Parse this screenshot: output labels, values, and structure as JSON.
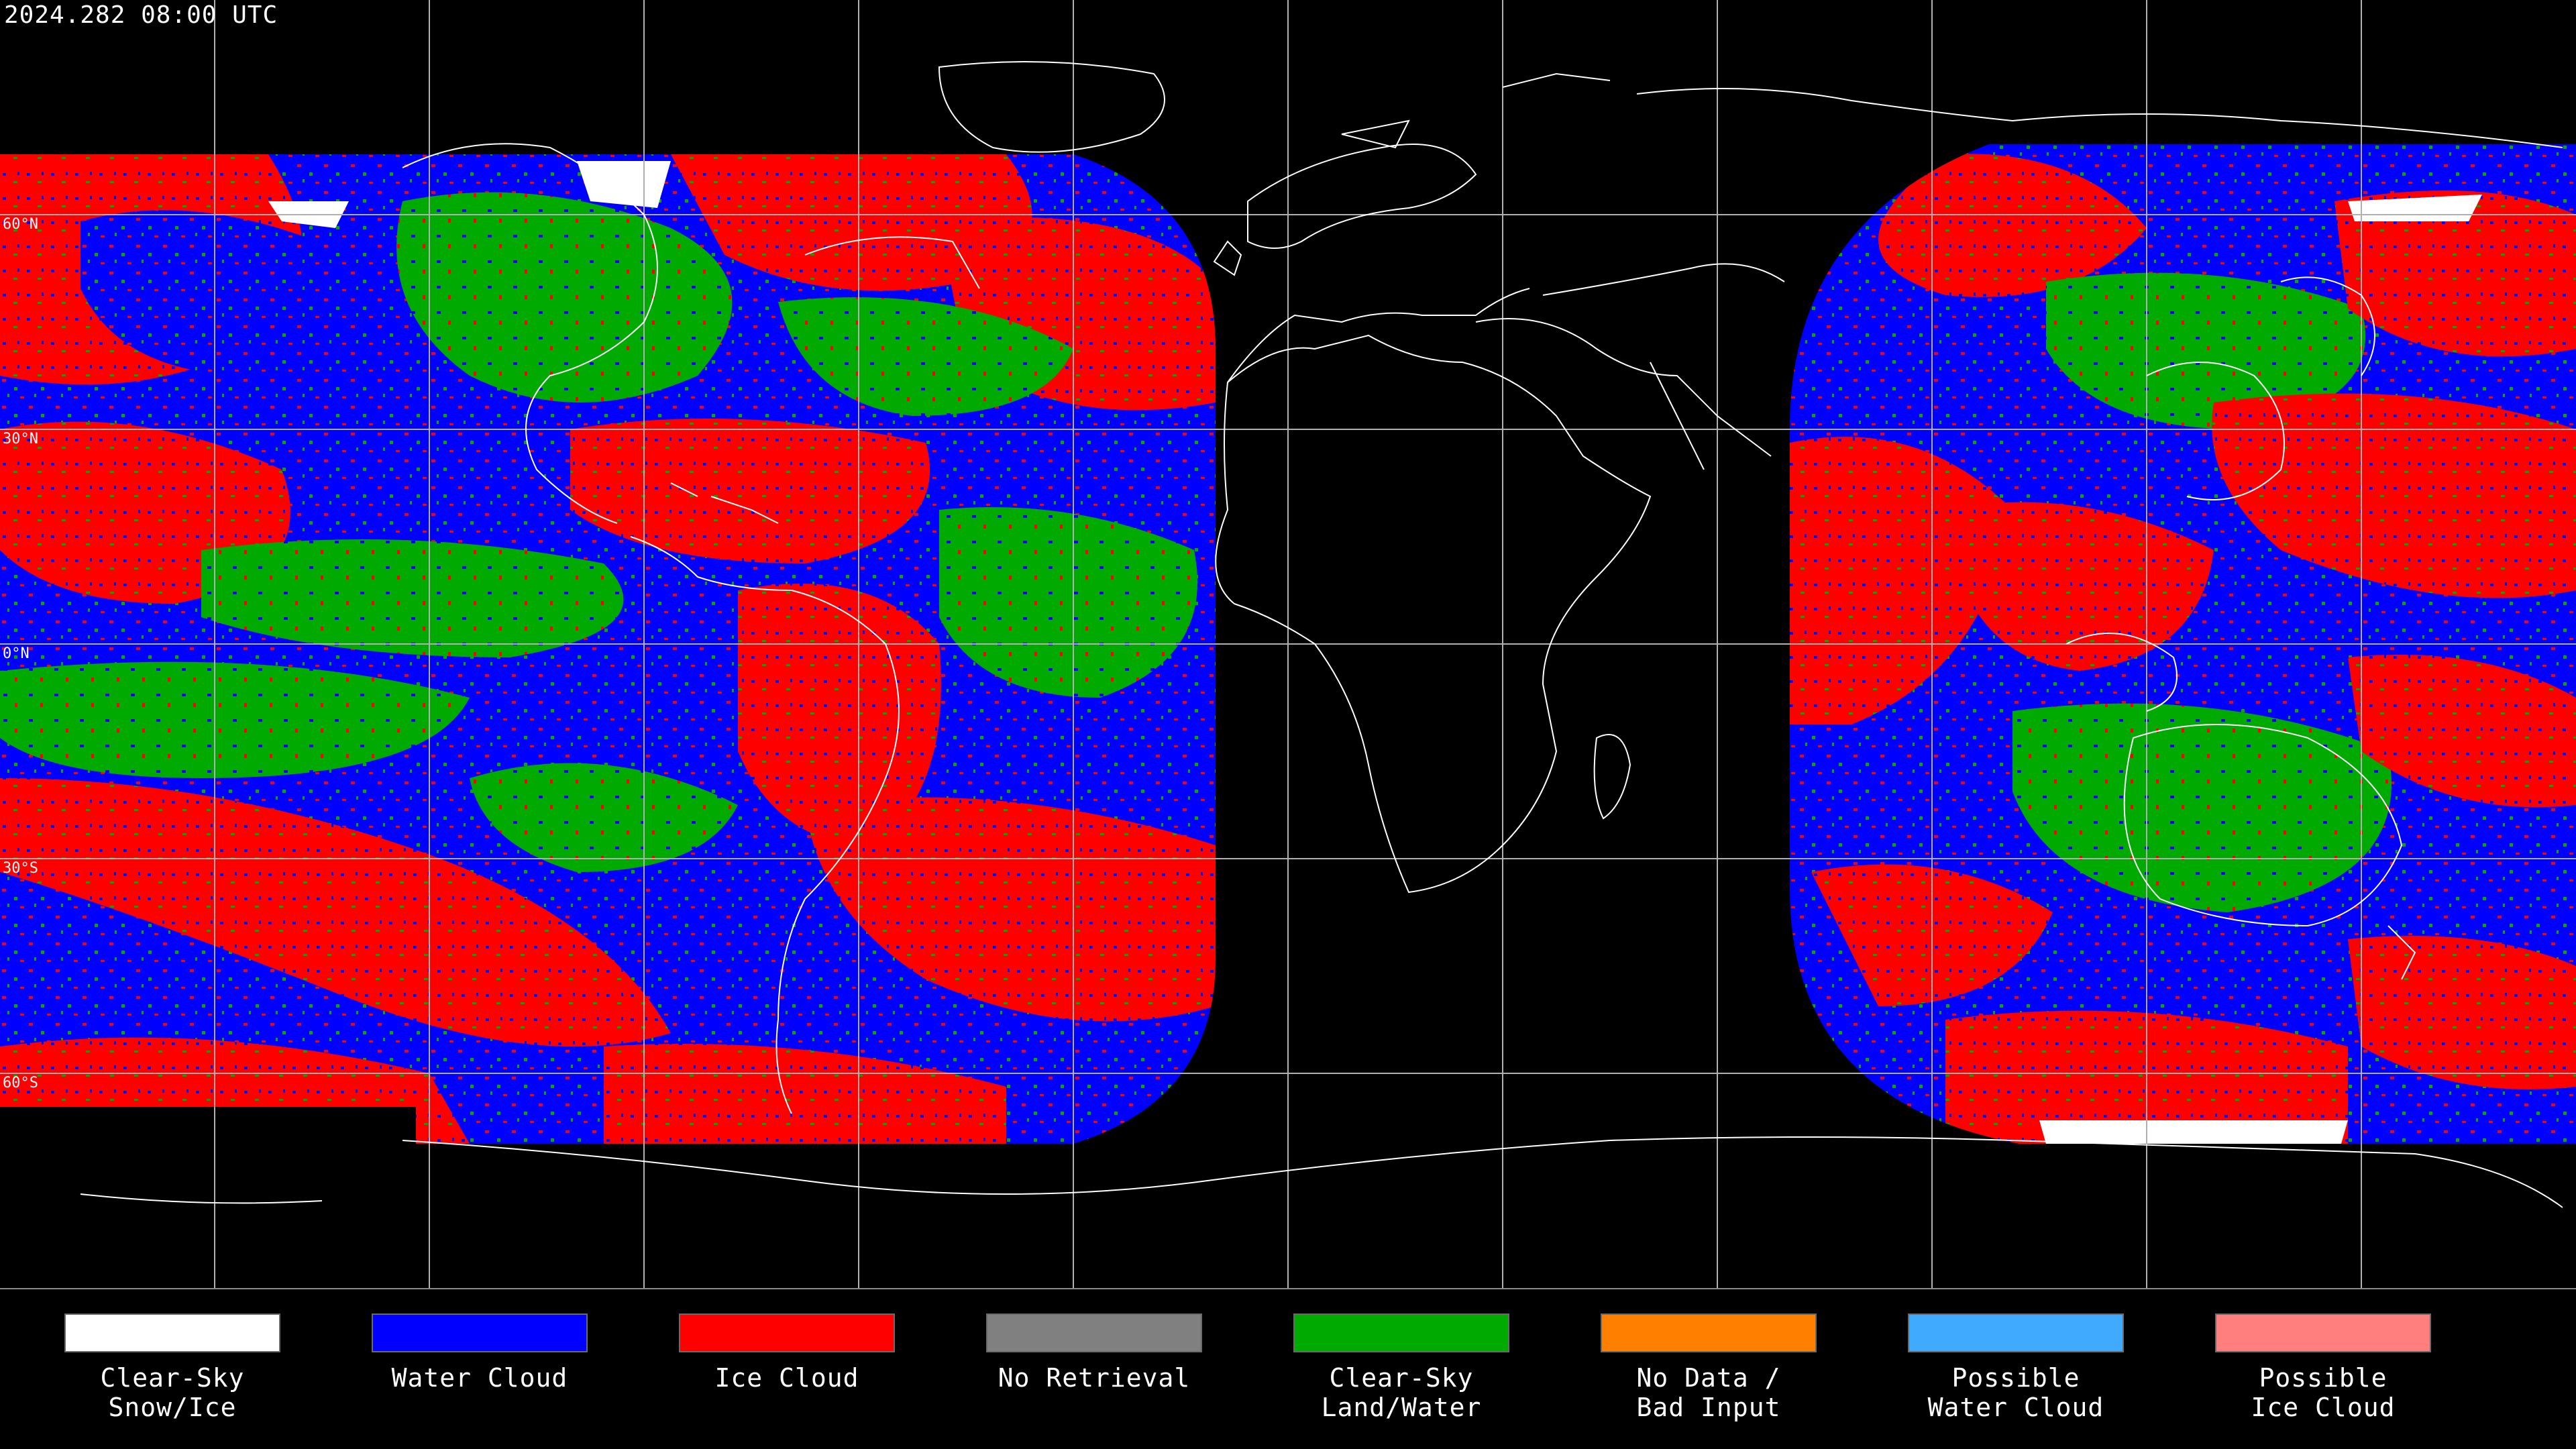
{
  "timestamp": "2024.282 08:00 UTC",
  "latitude_labels": [
    "60°N",
    "30°N",
    "0°N",
    "30°S",
    "60°S"
  ],
  "legend": [
    {
      "label": "Clear-Sky\nSnow/Ice",
      "color": "#ffffff"
    },
    {
      "label": "Water Cloud",
      "color": "#0000ff"
    },
    {
      "label": "Ice Cloud",
      "color": "#ff0000"
    },
    {
      "label": "No Retrieval",
      "color": "#808080"
    },
    {
      "label": "Clear-Sky\nLand/Water",
      "color": "#00aa00"
    },
    {
      "label": "No Data /\nBad Input",
      "color": "#ff8000"
    },
    {
      "label": "Possible\nWater Cloud",
      "color": "#40aaff"
    },
    {
      "label": "Possible\nIce Cloud",
      "color": "#ff7f7f"
    }
  ],
  "map": {
    "projection": "equirectangular",
    "background": "#000000",
    "graticule_color": "#b0b0b0",
    "coastline_color": "#ffffff",
    "grid_spacing_degrees": 15
  }
}
